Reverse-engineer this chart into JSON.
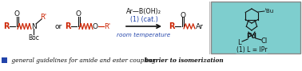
{
  "fig_width": 3.78,
  "fig_height": 0.89,
  "dpi": 100,
  "bg_color": "#ffffff",
  "teal_box_color": "#7ecece",
  "blue_text_color": "#2244aa",
  "red_color": "#cc2200",
  "dark_color": "#111111",
  "bottom_text_normal": " general guidelines for amide and ester coupling: ",
  "bottom_text_bold": "barrier to isomerization",
  "bottom_square_color": "#2244aa",
  "arrow_color": "#333333",
  "reaction_above": "Ar—B(OH)₂",
  "reaction_cat": "(1) (cat.)",
  "reaction_temp": "room temperature",
  "pd_text": "(1) L = IPr",
  "pd_label": "Pd",
  "cl_label": "Cl",
  "l_label": "L",
  "tbu_label": "ᵗBu"
}
